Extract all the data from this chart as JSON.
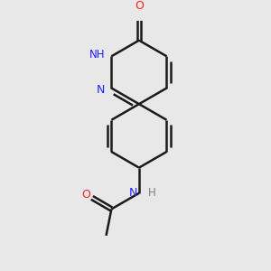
{
  "bg_color": "#e8e8e8",
  "bond_color": "#1a1a1a",
  "N_color": "#2020ff",
  "O_color": "#ff2020",
  "H_color": "#808080",
  "line_width": 1.8,
  "figsize": [
    3.0,
    3.0
  ],
  "dpi": 100,
  "xlim": [
    -2.5,
    2.5
  ],
  "ylim": [
    -3.5,
    3.5
  ]
}
